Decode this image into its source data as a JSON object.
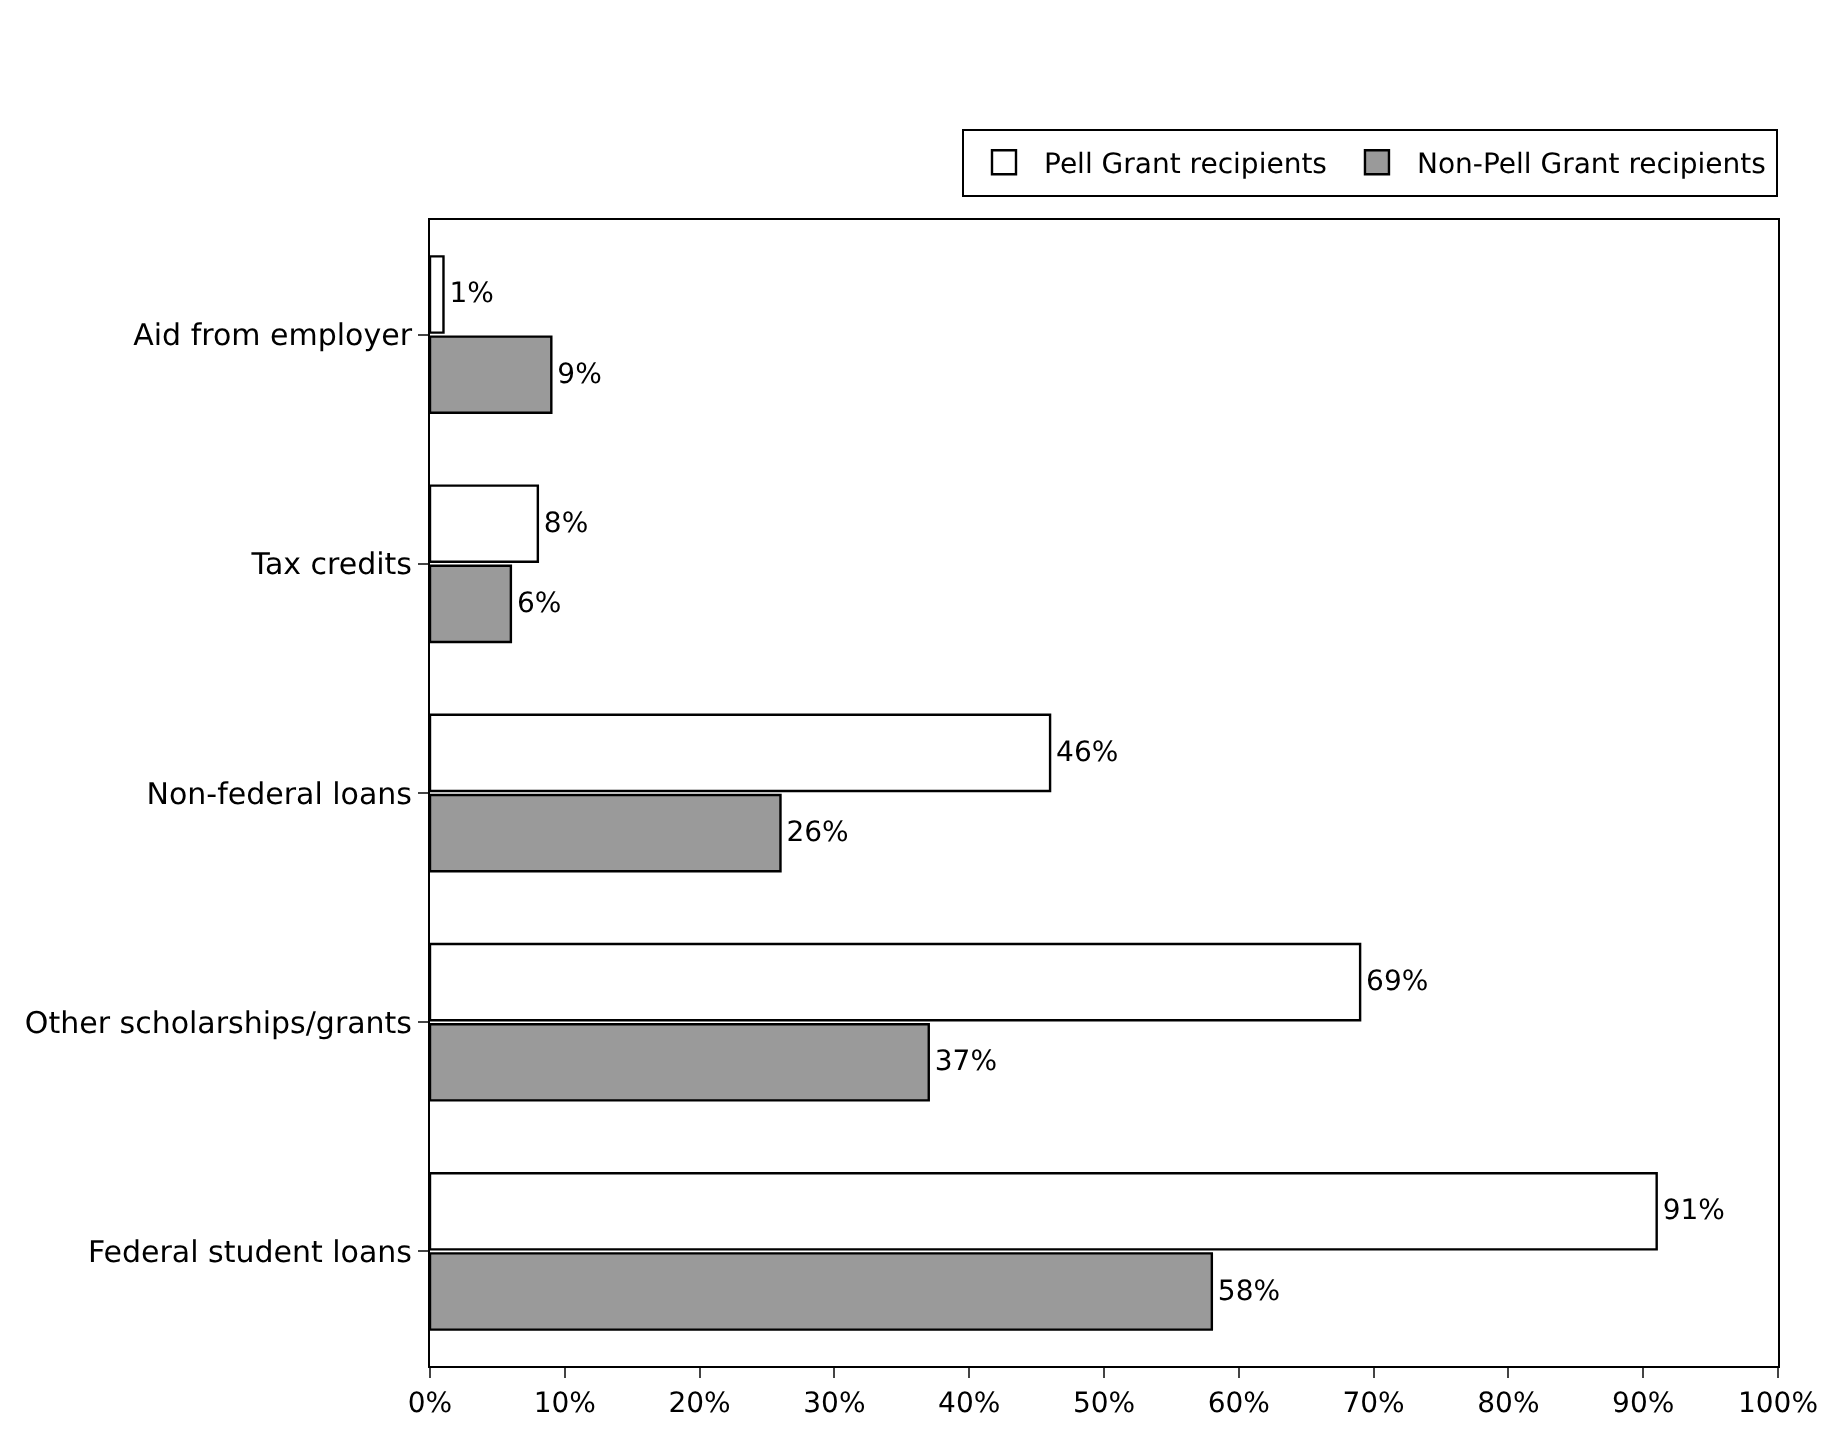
{
  "chart_data": {
    "type": "bar",
    "orientation": "horizontal",
    "categories": [
      "Aid from employer",
      "Tax credits",
      "Non-federal loans",
      "Other scholarships/grants",
      "Federal student loans"
    ],
    "series": [
      {
        "name": "Pell Grant recipients",
        "color": "#ffffff",
        "values": [
          1,
          8,
          46,
          69,
          91
        ],
        "value_labels": [
          "1%",
          "8%",
          "46%",
          "69%",
          "91%"
        ]
      },
      {
        "name": "Non-Pell Grant recipients",
        "color": "#9a9a9a",
        "values": [
          9,
          6,
          26,
          37,
          58
        ],
        "value_labels": [
          "9%",
          "6%",
          "26%",
          "37%",
          "58%"
        ]
      }
    ],
    "xlim": [
      0,
      100
    ],
    "xticks": [
      {
        "value": 0,
        "label": "0%"
      },
      {
        "value": 10,
        "label": "10%"
      },
      {
        "value": 20,
        "label": "20%"
      },
      {
        "value": 30,
        "label": "30%"
      },
      {
        "value": 40,
        "label": "40%"
      },
      {
        "value": 50,
        "label": "50%"
      },
      {
        "value": 60,
        "label": "60%"
      },
      {
        "value": 70,
        "label": "70%"
      },
      {
        "value": 80,
        "label": "80%"
      },
      {
        "value": 90,
        "label": "90%"
      },
      {
        "value": 100,
        "label": "100%"
      }
    ],
    "legend": "top right"
  }
}
